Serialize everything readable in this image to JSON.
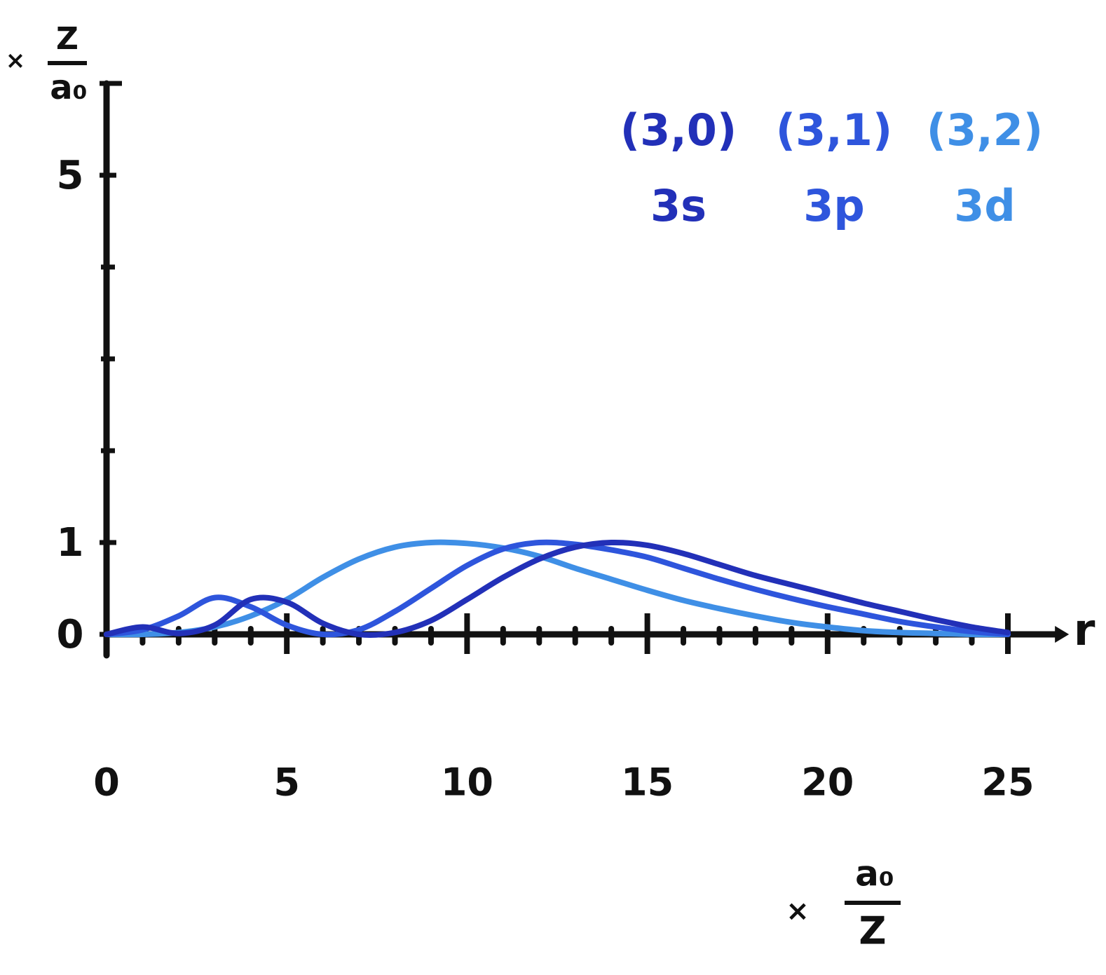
{
  "chart_data": {
    "type": "line",
    "x_axis_label": "r",
    "x_unit": {
      "prefix": "×",
      "numerator": "a₀",
      "denominator": "Z"
    },
    "y_unit": {
      "prefix": "×",
      "numerator": "Z",
      "denominator": "a₀"
    },
    "x": [
      0,
      1,
      2,
      3,
      4,
      5,
      6,
      7,
      8,
      9,
      10,
      11,
      12,
      13,
      14,
      15,
      16,
      17,
      18,
      19,
      20,
      21,
      22,
      23,
      24,
      25
    ],
    "series": [
      {
        "name": "3s",
        "label": "(3,0)",
        "color": "#2230b8",
        "values": [
          0,
          0.08,
          0.01,
          0.1,
          0.38,
          0.35,
          0.12,
          0,
          0.02,
          0.15,
          0.38,
          0.62,
          0.82,
          0.95,
          1.0,
          0.97,
          0.88,
          0.76,
          0.64,
          0.54,
          0.44,
          0.34,
          0.25,
          0.16,
          0.08,
          0.02
        ]
      },
      {
        "name": "3p",
        "label": "(3,1)",
        "color": "#2e55dc",
        "values": [
          0,
          0.05,
          0.2,
          0.4,
          0.3,
          0.1,
          0,
          0.05,
          0.25,
          0.5,
          0.75,
          0.93,
          1.0,
          0.98,
          0.92,
          0.84,
          0.72,
          0.6,
          0.49,
          0.39,
          0.3,
          0.22,
          0.14,
          0.08,
          0.03,
          0
        ]
      },
      {
        "name": "3d",
        "label": "(3,2)",
        "color": "#3f8fe6",
        "values": [
          0,
          0,
          0.02,
          0.08,
          0.2,
          0.38,
          0.62,
          0.82,
          0.95,
          1.0,
          0.99,
          0.94,
          0.85,
          0.72,
          0.6,
          0.48,
          0.37,
          0.28,
          0.2,
          0.13,
          0.08,
          0.04,
          0.02,
          0.01,
          0,
          0
        ]
      }
    ],
    "xlim": [
      0,
      26.5
    ],
    "ylim": [
      0,
      6
    ],
    "xticks": [
      0,
      5,
      10,
      15,
      20,
      25
    ],
    "xminor_ticks": [
      1,
      2,
      3,
      4,
      6,
      7,
      8,
      9,
      11,
      12,
      13,
      14,
      16,
      17,
      18,
      19,
      21,
      22,
      23,
      24
    ],
    "yticks": [
      0,
      1,
      5
    ],
    "yminor_ticks": [
      2,
      3,
      4
    ],
    "axis_color": "#111111",
    "grid": false
  }
}
